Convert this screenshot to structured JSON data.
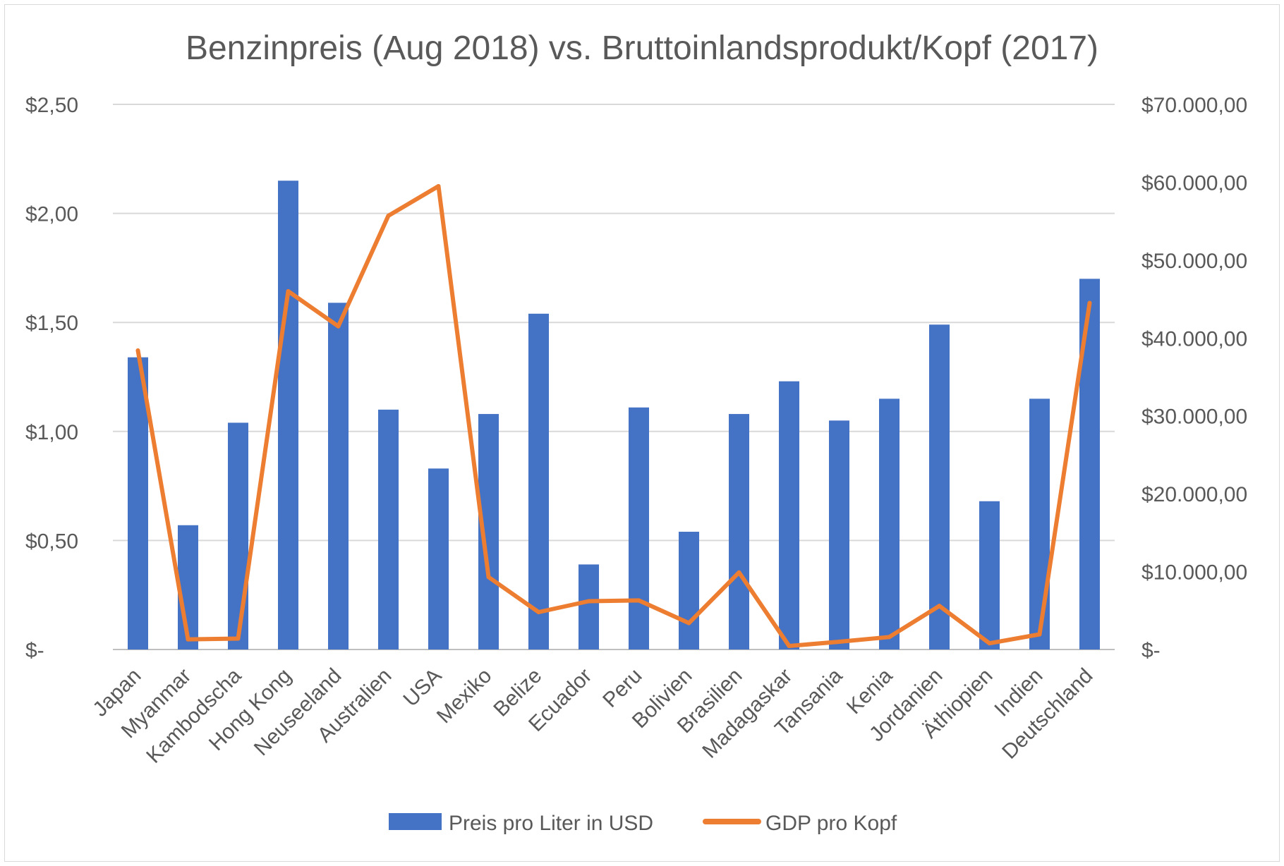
{
  "chart_data": {
    "type": "bar+line",
    "title": "Benzinpreis (Aug 2018) vs. Bruttoinlandsprodukt/Kopf (2017)",
    "categories": [
      "Japan",
      "Myanmar",
      "Kambodscha",
      "Hong Kong",
      "Neuseeland",
      "Australien",
      "USA",
      "Mexiko",
      "Belize",
      "Ecuador",
      "Peru",
      "Bolivien",
      "Brasilien",
      "Madagaskar",
      "Tansania",
      "Kenia",
      "Jordanien",
      "Äthiopien",
      "Indien",
      "Deutschland"
    ],
    "series": [
      {
        "name": "Preis pro Liter in USD",
        "type": "bar",
        "axis": "left",
        "color": "#4472C4",
        "values": [
          1.34,
          0.57,
          1.04,
          2.15,
          1.59,
          1.1,
          0.83,
          1.08,
          1.54,
          0.39,
          1.11,
          0.54,
          1.08,
          1.23,
          1.05,
          1.15,
          1.49,
          0.68,
          1.15,
          1.7
        ]
      },
      {
        "name": "GDP pro Kopf",
        "type": "line",
        "axis": "right",
        "color": "#ED7D31",
        "values": [
          38400,
          1300,
          1400,
          46000,
          41500,
          55700,
          59500,
          9300,
          4800,
          6200,
          6300,
          3400,
          9900,
          450,
          1000,
          1600,
          5600,
          800,
          1950,
          44500
        ]
      }
    ],
    "y_left": {
      "range": [
        0,
        2.5
      ],
      "ticks": [
        0,
        0.5,
        1.0,
        1.5,
        2.0,
        2.5
      ],
      "tick_labels": [
        "$-",
        "$0,50",
        "$1,00",
        "$1,50",
        "$2,00",
        "$2,50"
      ]
    },
    "y_right": {
      "range": [
        0,
        70000
      ],
      "ticks": [
        0,
        10000,
        20000,
        30000,
        40000,
        50000,
        60000,
        70000
      ],
      "tick_labels": [
        "$-",
        "$10.000,00",
        "$20.000,00",
        "$30.000,00",
        "$40.000,00",
        "$50.000,00",
        "$60.000,00",
        "$70.000,00"
      ]
    },
    "grid": true,
    "legend_position": "bottom"
  }
}
